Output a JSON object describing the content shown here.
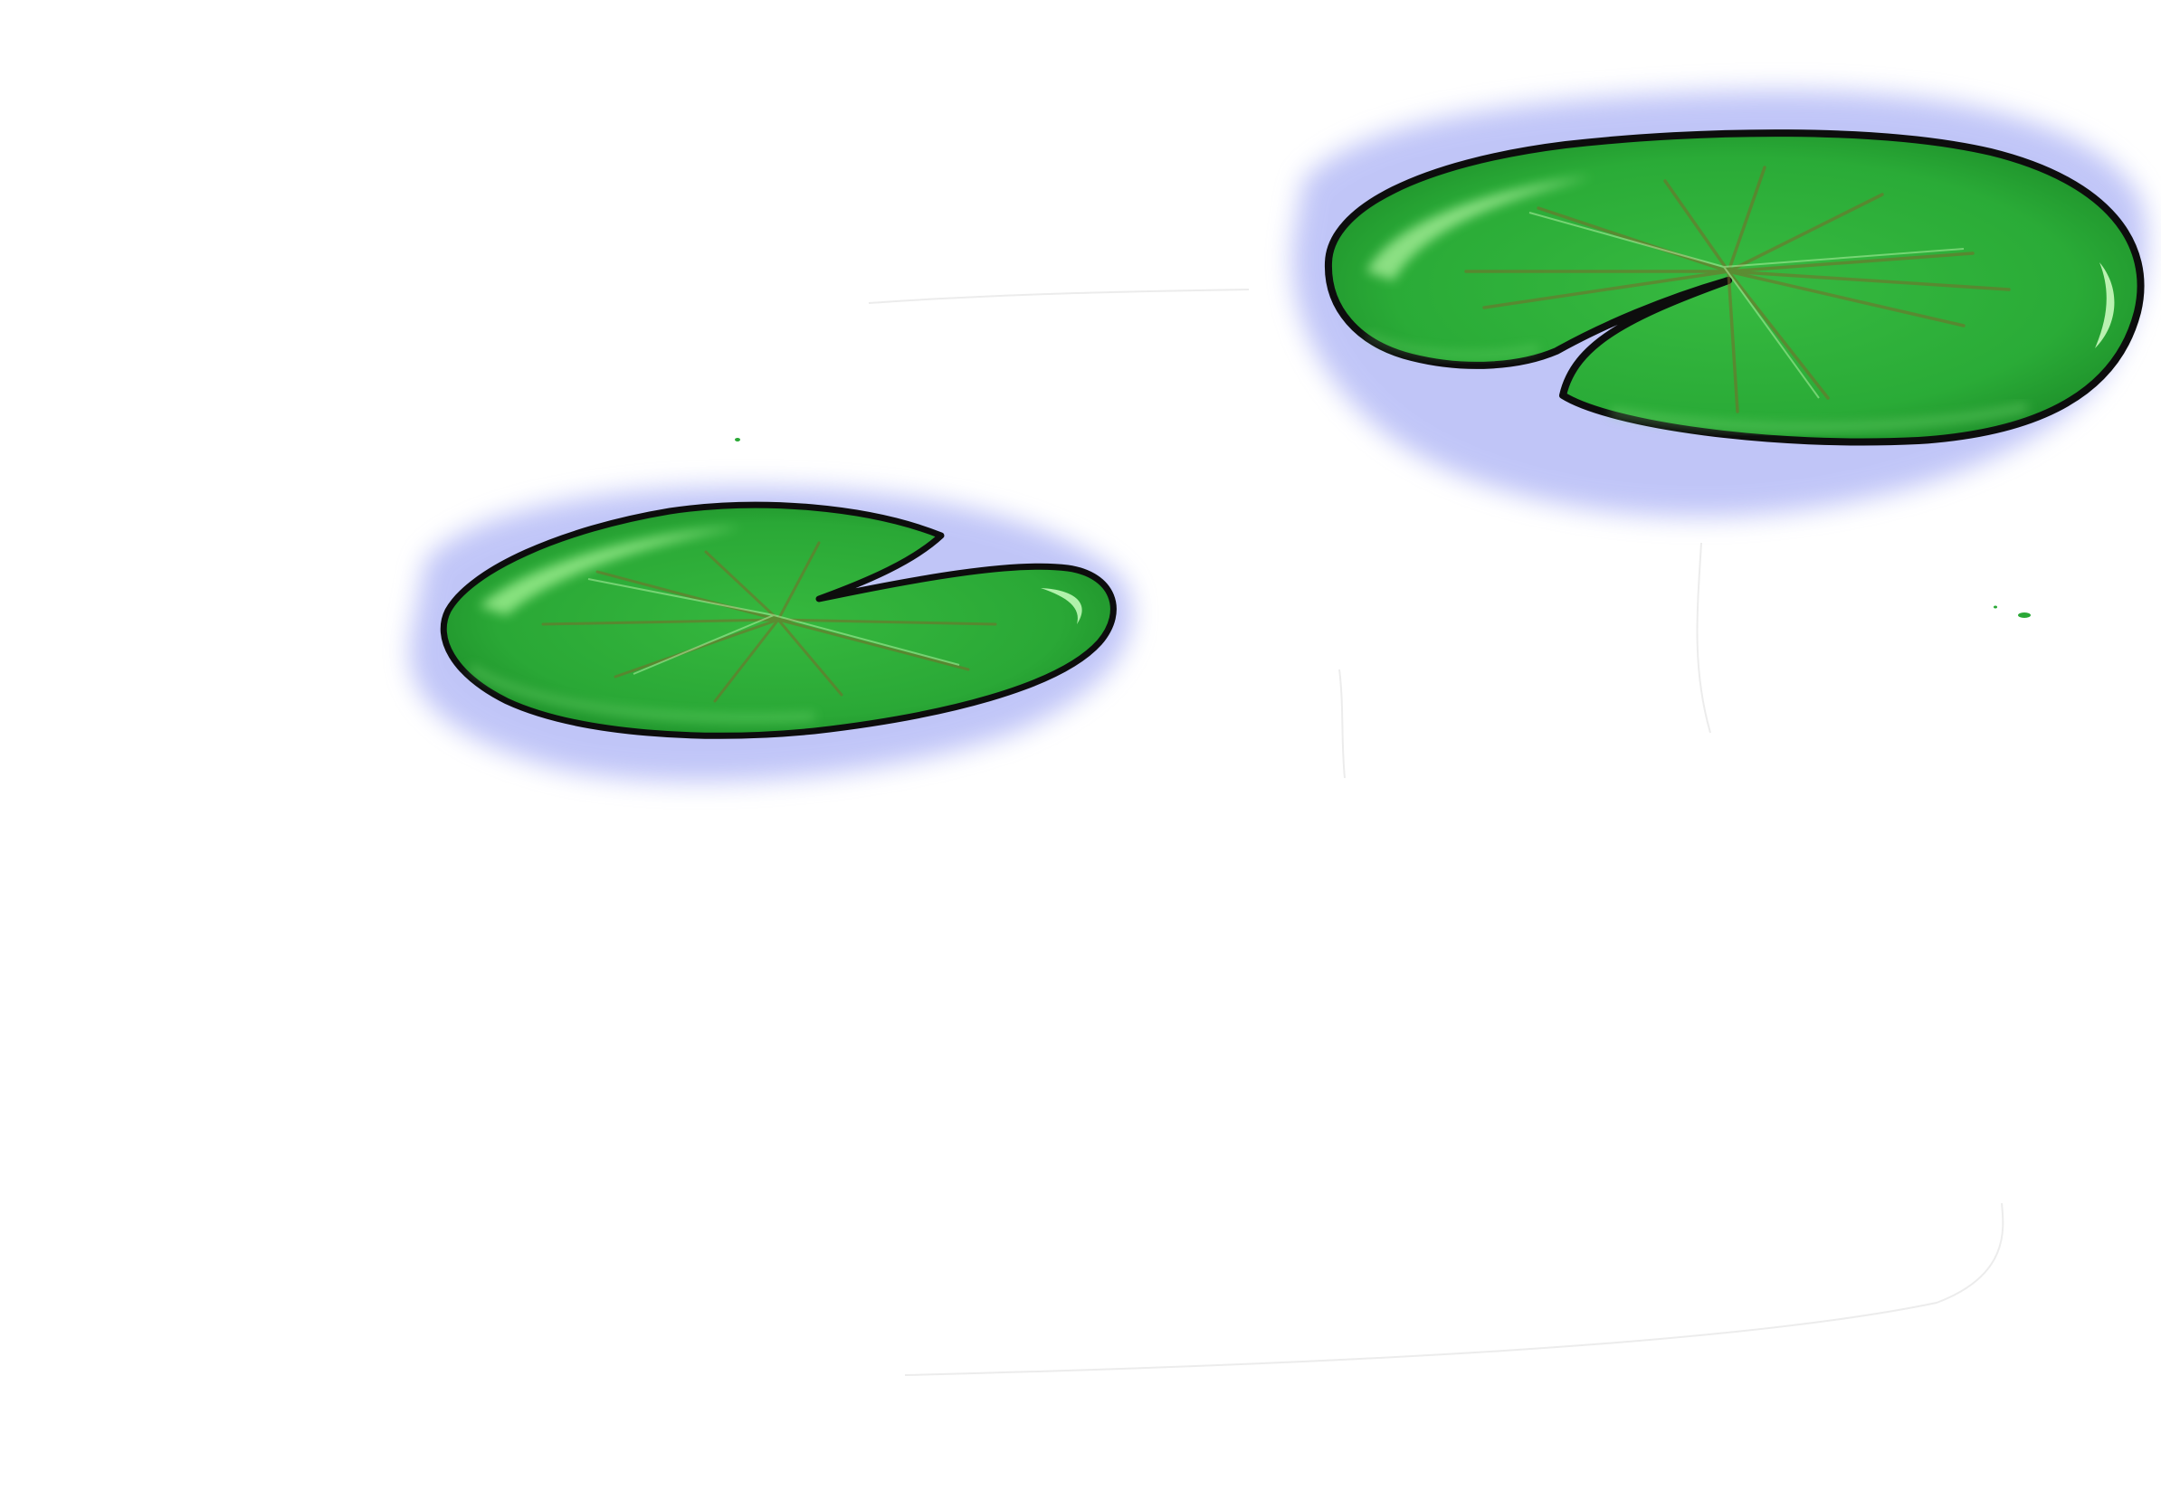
{
  "scene": {
    "background_color": "#ffffff",
    "water_shadow_color": "#8a93f0",
    "leaf_color": "#2fb53a",
    "leaf_shadow_color": "#1d8a2a",
    "leaf_highlight_color": "#9df08c",
    "vein_color": "#7a6a2a",
    "outline_color": "#0d0d0d",
    "sketch_line_color": "#e6e6e6",
    "objects": [
      "lily-pad",
      "lily-pad"
    ]
  }
}
